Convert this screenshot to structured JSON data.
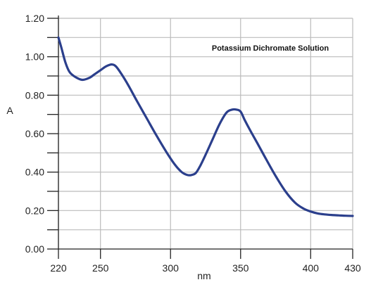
{
  "chart_data": {
    "type": "line",
    "title": "Potassium Dichromate Solution",
    "xlabel": "nm",
    "ylabel": "A",
    "xlim": [
      220,
      430
    ],
    "ylim": [
      0,
      1.2
    ],
    "x_ticks": [
      220,
      250,
      300,
      350,
      400,
      430
    ],
    "x_tick_labels": [
      "220",
      "250",
      "300",
      "350",
      "400",
      "430"
    ],
    "x_grid": [
      220,
      250,
      300,
      350,
      400,
      430
    ],
    "y_ticks": [
      0,
      0.2,
      0.4,
      0.6,
      0.8,
      1.0,
      1.2
    ],
    "y_tick_labels": [
      "0.00",
      "0.20",
      "0.40",
      "0.60",
      "0.80",
      "1.00",
      "1.20"
    ],
    "y_minor_ticks": [
      0.1,
      0.3,
      0.5,
      0.7,
      0.9,
      1.1
    ],
    "grid": true,
    "legend": "none",
    "colors": {
      "line": "#2b3f8c",
      "grid": "#bbbbbb",
      "axis": "#222222"
    },
    "series": [
      {
        "x": [
          220,
          222,
          225,
          228,
          232,
          237,
          242,
          246,
          250,
          254,
          258,
          261,
          265,
          270,
          276,
          283,
          290,
          297,
          303,
          308,
          312,
          315,
          318,
          321,
          325,
          330,
          335,
          340,
          344,
          347,
          350,
          353,
          357,
          362,
          368,
          375,
          382,
          389,
          395,
          400,
          405,
          410,
          415,
          420,
          425,
          430
        ],
        "y": [
          1.1,
          1.05,
          0.97,
          0.92,
          0.895,
          0.88,
          0.89,
          0.91,
          0.93,
          0.95,
          0.96,
          0.95,
          0.91,
          0.85,
          0.77,
          0.68,
          0.59,
          0.505,
          0.44,
          0.4,
          0.385,
          0.385,
          0.395,
          0.43,
          0.49,
          0.57,
          0.65,
          0.71,
          0.725,
          0.725,
          0.715,
          0.67,
          0.615,
          0.55,
          0.47,
          0.38,
          0.3,
          0.24,
          0.21,
          0.195,
          0.185,
          0.18,
          0.177,
          0.175,
          0.173,
          0.172
        ]
      }
    ]
  }
}
